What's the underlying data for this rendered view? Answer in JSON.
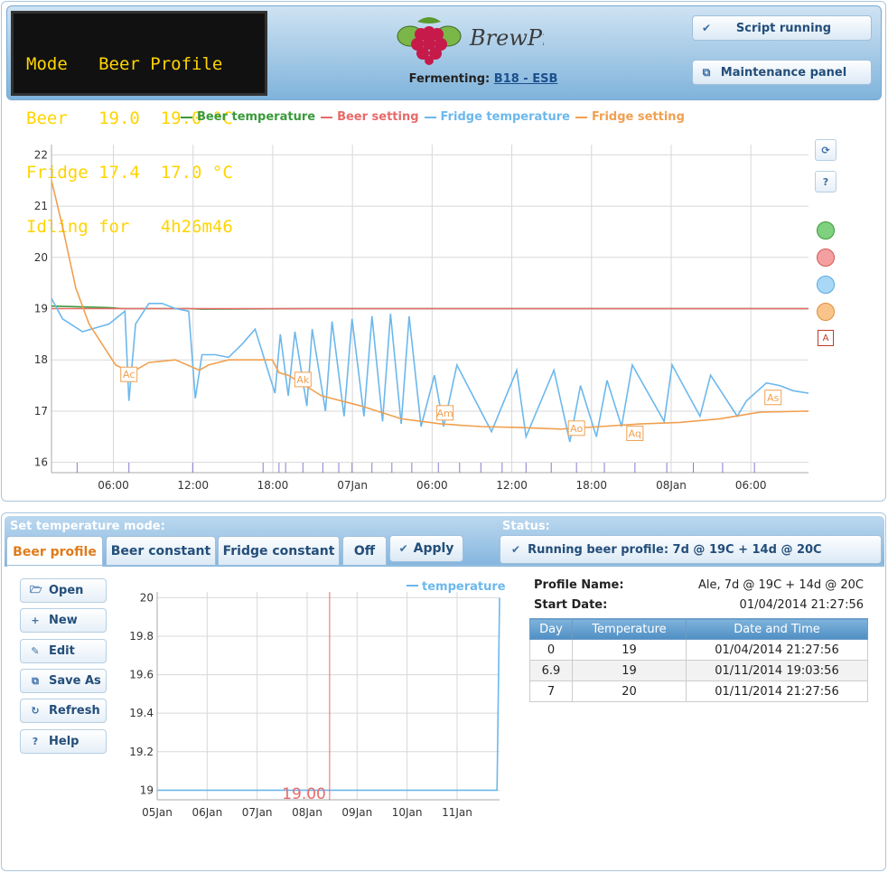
{
  "lcd": {
    "lines": [
      "Mode   Beer Profile",
      "Beer   19.0  19.0 °C",
      "Fridge 17.4  17.0 °C",
      "Idling for   4h26m46"
    ]
  },
  "header": {
    "logo_text": "BrewPi",
    "fermenting_label": "Fermenting:",
    "beer_name": "B18 - ESB",
    "script_status_button": "Script running",
    "maintenance_button": "Maintenance panel"
  },
  "colors": {
    "beer_temperature": "#3a9a3a",
    "beer_setting": "#e86a6a",
    "fridge_temperature": "#6cb8ec",
    "fridge_setting": "#f0a050"
  },
  "side_controls": {
    "refresh_icon": "refresh-icon",
    "help_label": "?",
    "annotation_label": "A"
  },
  "chart_data": [
    {
      "type": "line",
      "title": "",
      "legend": [
        "Beer temperature",
        "Beer setting",
        "Fridge temperature",
        "Fridge setting"
      ],
      "legend_position": "top",
      "x_tick_labels": [
        "06:00",
        "12:00",
        "18:00",
        "07Jan",
        "06:00",
        "12:00",
        "18:00",
        "08Jan",
        "06:00"
      ],
      "x_ticks": [
        5.33,
        11.33,
        17.33,
        23.33,
        29.33,
        35.33,
        41.33,
        47.33,
        53.33
      ],
      "x_range": [
        0.67,
        57.67
      ],
      "ylim": [
        15.8,
        22.2
      ],
      "y_ticks": [
        16,
        17,
        18,
        19,
        20,
        21,
        22
      ],
      "grid": true,
      "series": [
        {
          "name": "Beer temperature",
          "x": [
            0.67,
            2,
            5,
            6,
            11,
            12,
            20,
            30,
            40,
            50,
            57.67
          ],
          "y": [
            19.05,
            19.04,
            19.02,
            19.0,
            19.0,
            18.99,
            19.0,
            19.0,
            19.0,
            19.0,
            19.0
          ]
        },
        {
          "name": "Beer setting",
          "x": [
            0.67,
            10,
            20,
            30,
            40,
            50,
            57.67
          ],
          "y": [
            19.0,
            19.0,
            19.0,
            19.0,
            19.0,
            19.0,
            19.0
          ]
        },
        {
          "name": "Fridge temperature",
          "x": [
            0.67,
            1.5,
            3,
            5,
            6.2,
            6.5,
            7,
            8,
            9,
            10,
            11,
            11.5,
            12,
            13,
            14,
            15,
            16,
            17.5,
            17.9,
            18.5,
            19,
            19.9,
            20.3,
            21.3,
            21.8,
            22.7,
            23.3,
            24.2,
            24.8,
            25.6,
            26.2,
            27,
            27.6,
            28.5,
            29.5,
            30.2,
            31.2,
            33.8,
            35.7,
            36.4,
            38.5,
            39.7,
            40.5,
            41.7,
            42.5,
            43.6,
            44.4,
            46.8,
            47.4,
            49.5,
            50.3,
            52.3,
            53,
            54.5,
            55.5,
            56.5,
            57.67
          ],
          "y": [
            19.2,
            18.8,
            18.55,
            18.7,
            18.95,
            17.2,
            18.7,
            19.1,
            19.1,
            19.0,
            18.95,
            17.25,
            18.1,
            18.1,
            18.05,
            18.3,
            18.6,
            17.35,
            18.5,
            17.3,
            18.55,
            17.1,
            18.6,
            17.0,
            18.75,
            16.9,
            18.8,
            16.9,
            18.85,
            16.8,
            18.9,
            16.75,
            18.85,
            16.7,
            17.7,
            16.7,
            17.9,
            16.6,
            17.8,
            16.5,
            17.8,
            16.4,
            17.5,
            16.5,
            17.6,
            16.7,
            17.9,
            16.8,
            17.9,
            16.9,
            17.7,
            16.9,
            17.2,
            17.55,
            17.5,
            17.4,
            17.35
          ]
        },
        {
          "name": "Fridge setting",
          "x": [
            0.67,
            1.5,
            2.5,
            3.5,
            4.5,
            5.5,
            6.3,
            7,
            8,
            10,
            11.8,
            12.5,
            14,
            16,
            17.3,
            17.8,
            18.5,
            21,
            24,
            27,
            30,
            33,
            36,
            39,
            42,
            45,
            48,
            51,
            54,
            57.67
          ],
          "y": [
            21.5,
            20.6,
            19.4,
            18.7,
            18.3,
            17.9,
            17.8,
            17.8,
            17.95,
            18.0,
            17.8,
            17.9,
            18.0,
            18.0,
            18.0,
            17.75,
            17.7,
            17.3,
            17.1,
            16.85,
            16.75,
            16.7,
            16.68,
            16.65,
            16.7,
            16.75,
            16.78,
            16.85,
            16.98,
            17.0
          ]
        }
      ],
      "annotations": [
        {
          "label": "Ac",
          "x": 6.5,
          "y": 17.7
        },
        {
          "label": "Ak",
          "x": 19.6,
          "y": 17.6
        },
        {
          "label": "Am",
          "x": 30.3,
          "y": 16.95
        },
        {
          "label": "Ao",
          "x": 40.2,
          "y": 16.65
        },
        {
          "label": "Aq",
          "x": 44.6,
          "y": 16.55
        },
        {
          "label": "As",
          "x": 55.0,
          "y": 17.25
        }
      ],
      "event_markers_x": [
        2.6,
        6.5,
        11.3,
        16.6,
        17.8,
        18.3,
        19.6,
        21.1,
        22.3,
        23.3,
        24.8,
        26.3,
        27.8,
        29.8,
        31.4,
        33.0,
        34.6,
        36.4,
        38.3,
        40.2,
        42.3,
        44.6,
        47.0,
        49.0,
        51.2,
        53.6
      ]
    },
    {
      "type": "line",
      "title": "",
      "legend": [
        "temperature"
      ],
      "legend_position": "top-right",
      "x_tick_labels": [
        "05Jan",
        "06Jan",
        "07Jan",
        "08Jan",
        "09Jan",
        "10Jan",
        "11Jan"
      ],
      "x_ticks": [
        0,
        1,
        2,
        3,
        4,
        5,
        6
      ],
      "x_range": [
        0,
        6.85
      ],
      "ylim": [
        18.95,
        20.03
      ],
      "y_ticks": [
        19,
        19.2,
        19.4,
        19.6,
        19.8,
        20
      ],
      "y_tick_labels": [
        "19",
        "19.2",
        "19.4",
        "19.6",
        "19.8",
        "20"
      ],
      "grid": true,
      "series": [
        {
          "name": "temperature",
          "x": [
            0,
            6.8,
            6.85
          ],
          "y": [
            19.0,
            19.0,
            20.0
          ]
        }
      ],
      "current_marker": {
        "x": 3.45,
        "label": "19.00"
      }
    }
  ],
  "mode_bar": {
    "set_label": "Set temperature mode:",
    "status_label": "Status:",
    "tabs": [
      "Beer profile",
      "Beer constant",
      "Fridge constant",
      "Off"
    ],
    "apply_label": "Apply",
    "status_text": "Running beer profile: 7d @ 19C + 14d @ 20C"
  },
  "profile_buttons": [
    "Open",
    "New",
    "Edit",
    "Save As",
    "Refresh",
    "Help"
  ],
  "profile_info": {
    "name_label": "Profile Name:",
    "name_value": "Ale, 7d @ 19C + 14d @ 20C",
    "start_label": "Start Date:",
    "start_value": "01/04/2014 21:27:56"
  },
  "profile_table": {
    "headers": [
      "Day",
      "Temperature",
      "Date and Time"
    ],
    "rows": [
      [
        "0",
        "19",
        "01/04/2014 21:27:56"
      ],
      [
        "6.9",
        "19",
        "01/11/2014 19:03:56"
      ],
      [
        "7",
        "20",
        "01/11/2014 21:27:56"
      ]
    ]
  }
}
